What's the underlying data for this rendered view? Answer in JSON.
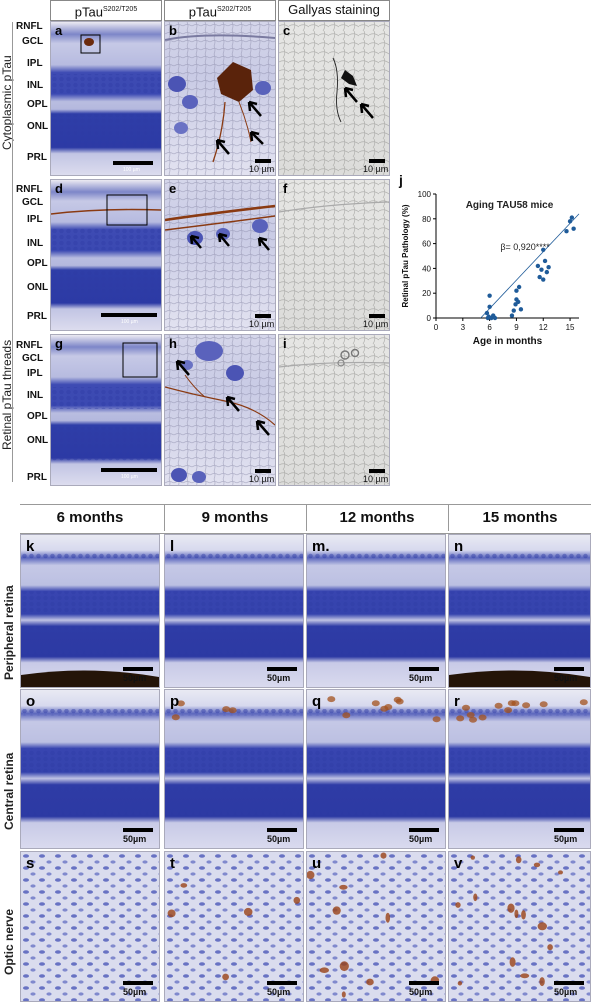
{
  "top_headers": {
    "col1": "pTau",
    "col1_sup": "S202/T205",
    "col2": "pTau",
    "col2_sup": "S202/T205",
    "col3": "Gallyas staining"
  },
  "row_labels": {
    "cytoplasmic": "Cytoplasmic pTau",
    "threads": "Retinal pTau threads"
  },
  "layers_a": [
    "RNFL",
    "GCL",
    "IPL",
    "INL",
    "OPL",
    "ONL",
    "PRL"
  ],
  "layers_d": [
    "RNFL",
    "GCL",
    "IPL",
    "INL",
    "OPL",
    "ONL",
    "PRL"
  ],
  "layers_g": [
    "RNFL",
    "GCL",
    "IPL",
    "INL",
    "OPL",
    "ONL",
    "PRL"
  ],
  "panel_letters": {
    "a": "a",
    "b": "b",
    "c": "c",
    "d": "d",
    "e": "e",
    "f": "f",
    "g": "g",
    "h": "h",
    "i": "i",
    "j": "j",
    "k": "k",
    "l": "l",
    "m": "m.",
    "n": "n",
    "o": "o",
    "p": "p",
    "q": "q",
    "r": "r",
    "s": "s",
    "t": "t",
    "u": "u",
    "v": "v"
  },
  "scalebars": {
    "a": "100 µm",
    "d": "100 µm",
    "g": "100 µm",
    "small": "10 µm",
    "bottom": "50µm"
  },
  "bottom_headers": [
    "6 months",
    "9 months",
    "12 months",
    "15 months"
  ],
  "bottom_rows": [
    "Peripheral retina",
    "Central retina",
    "Optic nerve"
  ],
  "colors": {
    "tissue_blue": "#3b48b0",
    "tissue_light": "#c9cbe6",
    "tau_brown": "#8a3a12",
    "plot_blue": "#1f5b99"
  },
  "chart_data": {
    "type": "scatter",
    "title": "Aging TAU58 mice",
    "xlabel": "Age in months",
    "ylabel": "Retinal pTau Pathology (%)",
    "xlim": [
      0,
      16
    ],
    "ylim": [
      0,
      100
    ],
    "xticks": [
      0,
      3,
      6,
      9,
      12,
      15
    ],
    "yticks": [
      0,
      20,
      40,
      60,
      80,
      100
    ],
    "annotation": "β= 0,920****",
    "points": [
      [
        5.7,
        4
      ],
      [
        5.8,
        0
      ],
      [
        5.9,
        1
      ],
      [
        6.0,
        9
      ],
      [
        6.0,
        18
      ],
      [
        6.2,
        0
      ],
      [
        6.4,
        2
      ],
      [
        6.6,
        0
      ],
      [
        8.5,
        2
      ],
      [
        8.7,
        6
      ],
      [
        8.9,
        11
      ],
      [
        9.0,
        15
      ],
      [
        9.0,
        22
      ],
      [
        9.2,
        13
      ],
      [
        9.3,
        25
      ],
      [
        9.5,
        7
      ],
      [
        11.4,
        42
      ],
      [
        11.6,
        33
      ],
      [
        11.8,
        39
      ],
      [
        12.0,
        55
      ],
      [
        12.0,
        31
      ],
      [
        12.2,
        46
      ],
      [
        12.4,
        37
      ],
      [
        12.6,
        41
      ],
      [
        14.6,
        70
      ],
      [
        15.0,
        78
      ],
      [
        15.2,
        81
      ],
      [
        15.4,
        72
      ]
    ],
    "fit": [
      [
        5,
        0
      ],
      [
        16,
        84
      ]
    ]
  }
}
